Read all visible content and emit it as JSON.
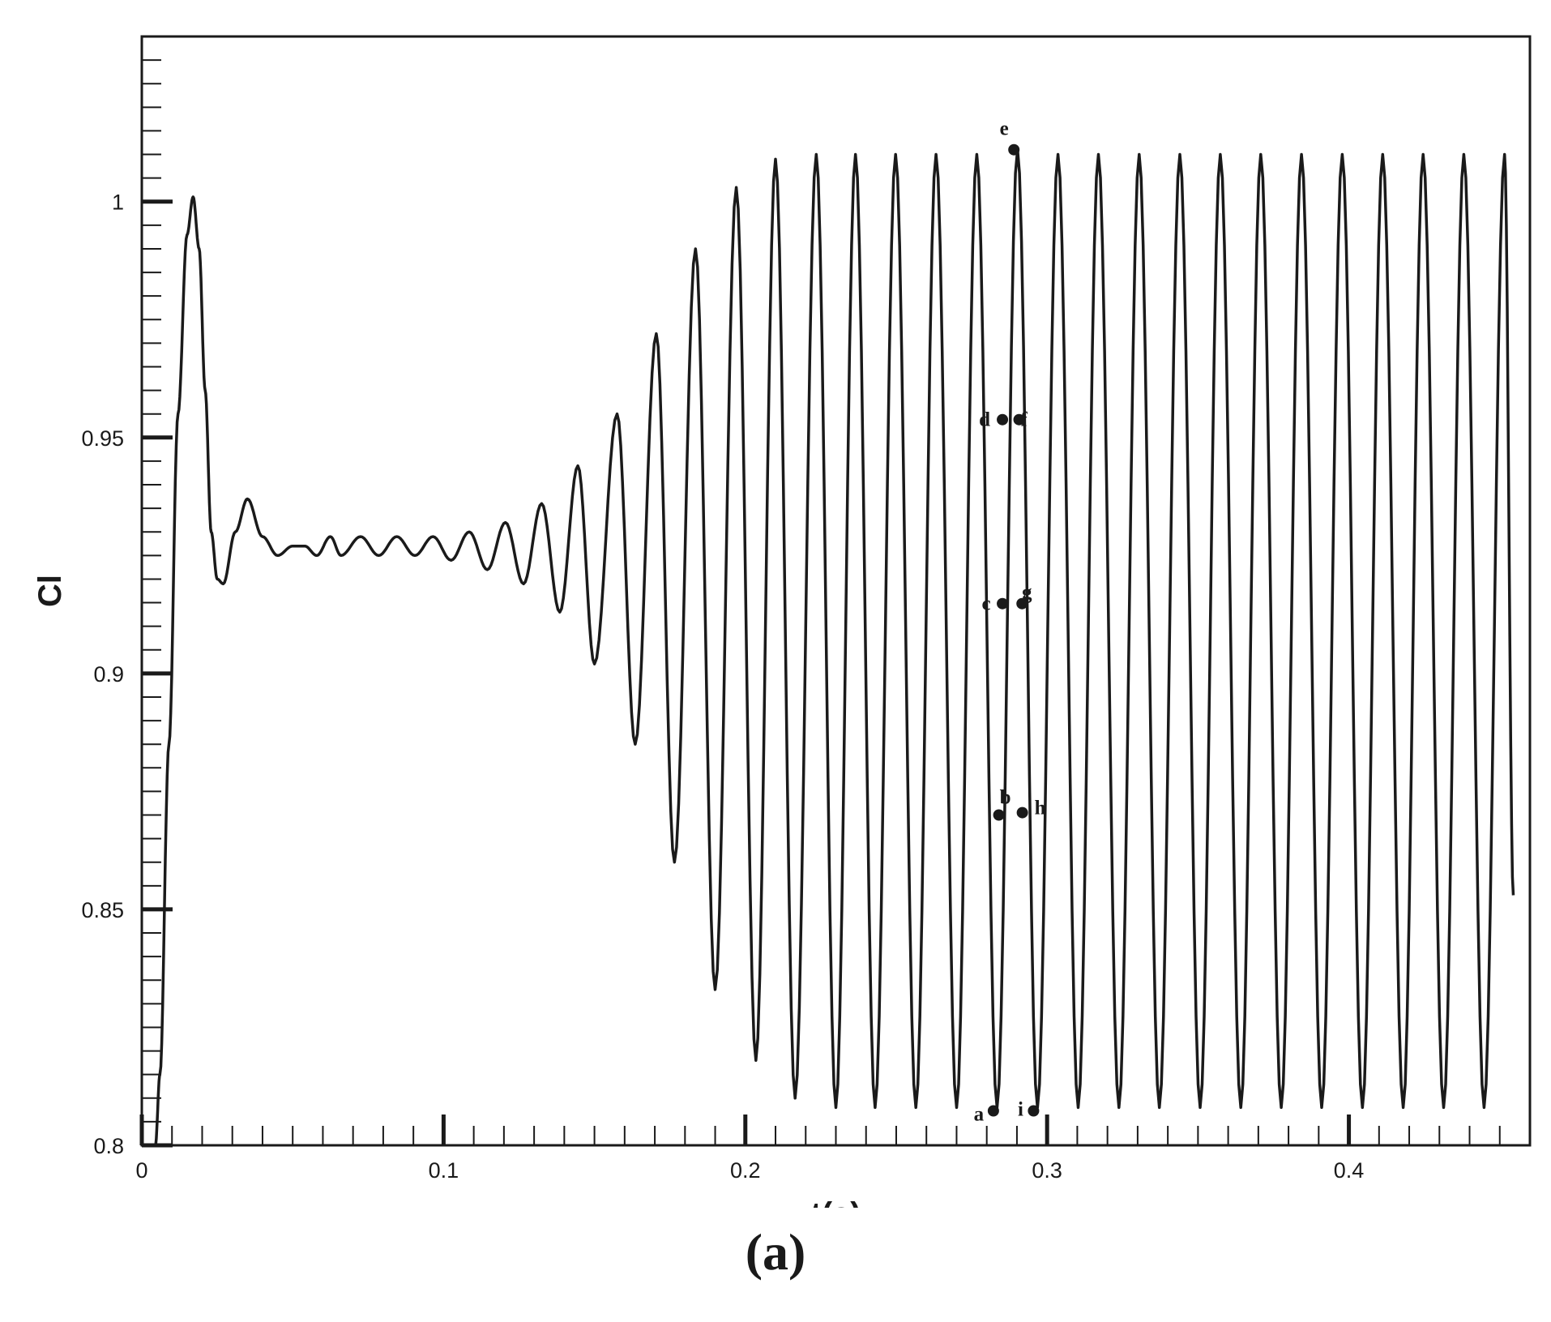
{
  "chart_data": {
    "type": "line",
    "title": "",
    "xlabel": "t(s)",
    "ylabel": "Cl",
    "xlim": [
      0,
      0.46
    ],
    "ylim": [
      0.8,
      1.035
    ],
    "x_ticks": [
      0,
      0.1,
      0.2,
      0.3,
      0.4
    ],
    "x_tick_labels": [
      "0",
      "0.1",
      "0.2",
      "0.3",
      "0.4"
    ],
    "y_ticks": [
      0.8,
      0.85,
      0.9,
      0.95,
      1.0
    ],
    "y_tick_labels": [
      "0.8",
      "0.85",
      "0.9",
      "0.95",
      "1"
    ],
    "grid": false,
    "legend": "none",
    "series": [
      {
        "x": [
          0.0045,
          0.006,
          0.009,
          0.012,
          0.015,
          0.017,
          0.019,
          0.021,
          0.023,
          0.025,
          0.027,
          0.031,
          0.035,
          0.04,
          0.045,
          0.05,
          0.054,
          0.058,
          0.0625,
          0.066,
          0.0725,
          0.0785,
          0.0845,
          0.0905,
          0.0965,
          0.1025,
          0.1085,
          0.1145,
          0.1205,
          0.1265,
          0.1325,
          0.1385,
          0.1445,
          0.15,
          0.1575,
          0.1635,
          0.1705,
          0.1765,
          0.1835,
          0.19,
          0.197,
          0.2035,
          0.21,
          0.2165,
          0.2235,
          0.23,
          0.2365,
          0.243,
          0.2498,
          0.2565,
          0.2632,
          0.27,
          0.2767,
          0.2834,
          0.2902,
          0.2968,
          0.3036,
          0.3103,
          0.317,
          0.3238,
          0.3305,
          0.3372,
          0.344,
          0.3507,
          0.3574,
          0.3642,
          0.3708,
          0.3776,
          0.3843,
          0.391,
          0.3978,
          0.4045,
          0.4112,
          0.418,
          0.4246,
          0.4314,
          0.4381,
          0.4448,
          0.4516,
          0.4545
        ],
        "y": [
          0.8,
          0.815,
          0.885,
          0.955,
          0.993,
          1.001,
          0.99,
          0.96,
          0.93,
          0.92,
          0.919,
          0.93,
          0.937,
          0.929,
          0.925,
          0.927,
          0.927,
          0.925,
          0.929,
          0.925,
          0.929,
          0.925,
          0.929,
          0.925,
          0.929,
          0.924,
          0.93,
          0.922,
          0.932,
          0.919,
          0.936,
          0.913,
          0.944,
          0.902,
          0.955,
          0.885,
          0.972,
          0.86,
          0.99,
          0.833,
          1.003,
          0.818,
          1.009,
          0.81,
          1.01,
          0.808,
          1.01,
          0.808,
          1.01,
          0.808,
          1.01,
          0.808,
          1.01,
          0.808,
          1.011,
          0.808,
          1.01,
          0.808,
          1.01,
          0.808,
          1.01,
          0.808,
          1.01,
          0.808,
          1.01,
          0.808,
          1.01,
          0.808,
          1.01,
          0.808,
          1.01,
          0.808,
          1.01,
          0.808,
          1.01,
          0.808,
          1.01,
          0.808,
          1.01,
          0.853
        ]
      }
    ],
    "annotations": [
      {
        "label": "a",
        "x": 0.2822,
        "y": 0.8073
      },
      {
        "label": "b",
        "x": 0.284,
        "y": 0.87
      },
      {
        "label": "c",
        "x": 0.2852,
        "y": 0.9148
      },
      {
        "label": "d",
        "x": 0.2852,
        "y": 0.9538
      },
      {
        "label": "e",
        "x": 0.289,
        "y": 1.011
      },
      {
        "label": "f",
        "x": 0.2907,
        "y": 0.9538
      },
      {
        "label": "g",
        "x": 0.2917,
        "y": 0.9148
      },
      {
        "label": "h",
        "x": 0.2918,
        "y": 0.8705
      },
      {
        "label": "i",
        "x": 0.2955,
        "y": 0.8073
      }
    ]
  },
  "caption": "(a)"
}
